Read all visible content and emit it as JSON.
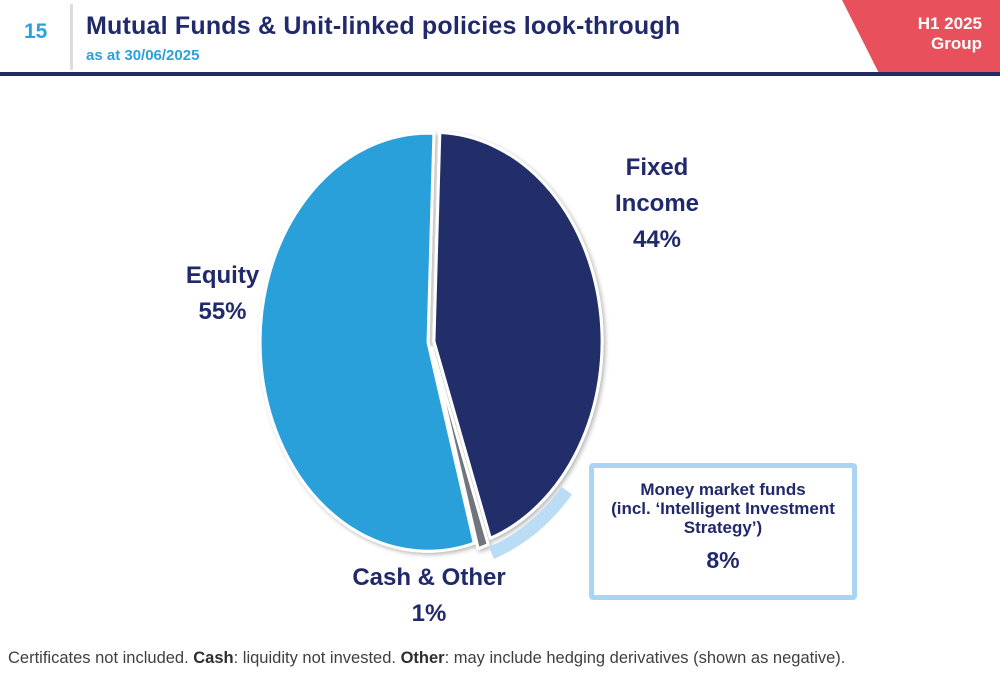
{
  "page": {
    "number": "15"
  },
  "header": {
    "title": "Mutual Funds & Unit-linked policies look-through",
    "subtitle": "as at 30/06/2025",
    "badge": {
      "line1": "H1 2025",
      "line2": "Group",
      "color": "#E8515C"
    }
  },
  "chart_data": {
    "type": "pie",
    "title": "Mutual Funds & Unit-linked policies look-through as at 30/06/2025",
    "start_angle_deg": 2,
    "direction": "clockwise",
    "slices": [
      {
        "label": "Fixed Income",
        "value": 44,
        "value_label": "44%",
        "color": "#232D69"
      },
      {
        "label": "Cash & Other",
        "value": 1,
        "value_label": "1%",
        "color": "#6F767C"
      },
      {
        "label": "Equity",
        "value": 55,
        "value_label": "55%",
        "color": "#29A0DB"
      }
    ],
    "highlight": {
      "applies_to": "Fixed Income",
      "label": "Money market funds\n(incl. ‘Intelligent Investment\nStrategy’)",
      "value": 8,
      "value_label": "8%",
      "color": "#BBDCF5"
    }
  },
  "footer": {
    "part1": "Certificates not included. ",
    "bold1": "Cash",
    "part2": ": liquidity not invested. ",
    "bold2": "Other",
    "part3": ": may include hedging derivatives (shown as negative)."
  }
}
